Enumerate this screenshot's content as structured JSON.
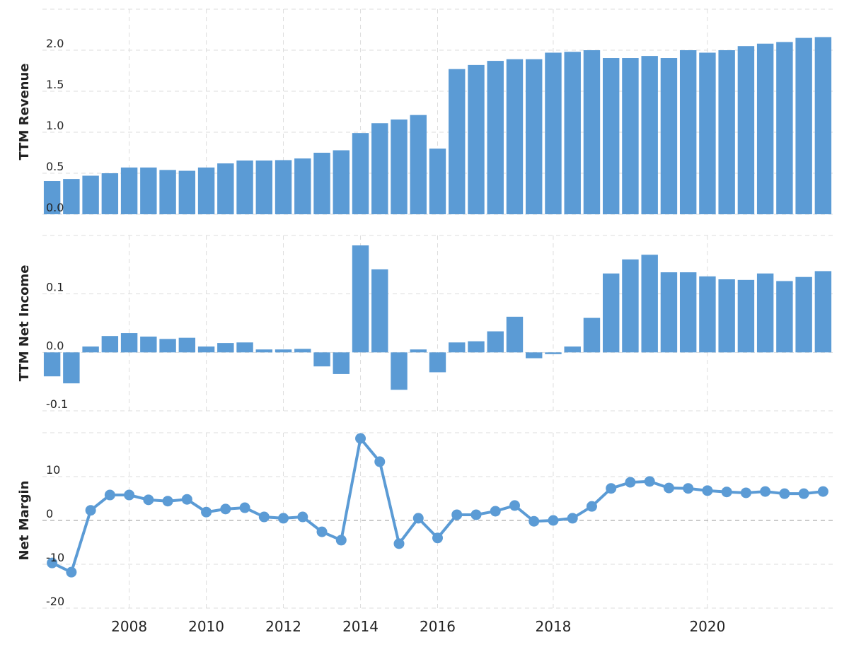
{
  "chart_data": [
    {
      "type": "bar",
      "y_label": "TTM Revenue",
      "color": "#5b9bd5",
      "grid": true,
      "ylim": [
        0,
        2.5
      ],
      "yticks": [
        {
          "value": 0,
          "label": "0.0"
        },
        0.5,
        {
          "value": 1,
          "label": "1.0"
        },
        1.5,
        {
          "value": 2,
          "label": "2.0"
        }
      ],
      "values": [
        0.405,
        0.43,
        0.47,
        0.5,
        0.57,
        0.57,
        0.54,
        0.53,
        0.57,
        0.62,
        0.655,
        0.655,
        0.66,
        0.68,
        0.75,
        0.78,
        0.99,
        1.11,
        1.155,
        1.21,
        0.8,
        1.77,
        1.82,
        1.87,
        1.89,
        1.89,
        1.97,
        1.98,
        2.0,
        1.905,
        1.905,
        1.93,
        1.905,
        2.0,
        1.97,
        2.0,
        2.05,
        2.08,
        2.1,
        2.15,
        2.16
      ]
    },
    {
      "type": "bar",
      "y_label": "TTM Net Income",
      "color": "#5b9bd5",
      "grid": true,
      "ylim": [
        -0.1,
        0.2
      ],
      "yticks": [
        -0.1,
        {
          "value": 0,
          "label": "0.0"
        },
        0.1
      ],
      "values": [
        -0.041,
        -0.053,
        0.01,
        0.028,
        0.033,
        0.027,
        0.023,
        0.025,
        0.01,
        0.016,
        0.017,
        0.005,
        0.005,
        0.006,
        -0.024,
        -0.037,
        0.183,
        0.142,
        -0.064,
        0.005,
        -0.034,
        0.017,
        0.019,
        0.036,
        0.061,
        -0.01,
        -0.003,
        0.01,
        0.059,
        0.135,
        0.159,
        0.167,
        0.137,
        0.137,
        0.13,
        0.125,
        0.124,
        0.135,
        0.122,
        0.129,
        0.139
      ]
    },
    {
      "type": "line",
      "y_label": "Net Margin",
      "color": "#5b9bd5",
      "grid": true,
      "ylim": [
        -20,
        20
      ],
      "yticks": [
        -20,
        -10,
        0,
        10
      ],
      "categories": [
        null,
        null,
        null,
        null,
        "2008",
        null,
        null,
        null,
        "2010",
        null,
        null,
        null,
        "2012",
        null,
        null,
        null,
        "2014",
        null,
        null,
        null,
        "2016",
        null,
        null,
        null,
        null,
        null,
        "2018",
        null,
        null,
        null,
        null,
        null,
        null,
        null,
        "2020",
        null,
        null,
        null,
        null,
        null,
        null
      ],
      "values": [
        -9.7,
        -11.8,
        2.3,
        5.8,
        5.8,
        4.7,
        4.4,
        4.8,
        1.9,
        2.6,
        2.9,
        0.8,
        0.5,
        0.8,
        -2.6,
        -4.5,
        18.7,
        13.4,
        -5.3,
        0.5,
        -4.0,
        1.3,
        1.3,
        2.1,
        3.4,
        -0.2,
        0.0,
        0.5,
        3.2,
        7.3,
        8.7,
        8.9,
        7.4,
        7.3,
        6.8,
        6.5,
        6.3,
        6.6,
        6.1,
        6.1,
        6.6
      ]
    }
  ]
}
